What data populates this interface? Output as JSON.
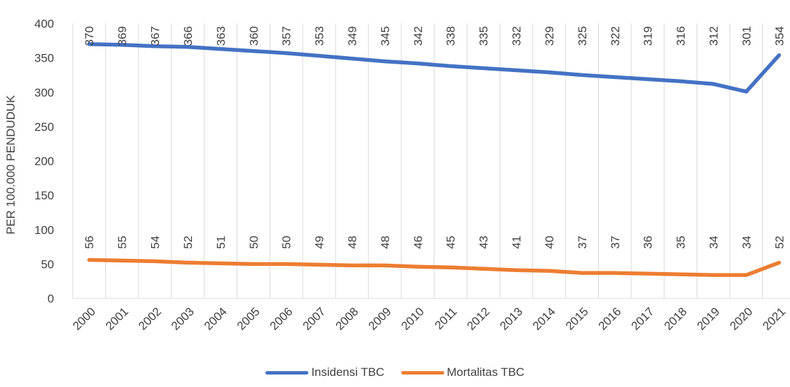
{
  "chart_data": {
    "type": "line",
    "title": "",
    "xlabel": "",
    "ylabel": "PER 100.000 PENDUDUK",
    "ylim": [
      0,
      400
    ],
    "yticks": [
      "0",
      "50",
      "100",
      "150",
      "200",
      "250",
      "300",
      "350",
      "400"
    ],
    "grid": "vertical",
    "legend_position": "bottom",
    "categories": [
      "2000",
      "2001",
      "2002",
      "2003",
      "2004",
      "2005",
      "2006",
      "2007",
      "2008",
      "2009",
      "2010",
      "2011",
      "2012",
      "2013",
      "2014",
      "2015",
      "2016",
      "2017",
      "2018",
      "2019",
      "2020",
      "2021"
    ],
    "series": [
      {
        "name": "Insidensi TBC",
        "color": "#4472C4",
        "values": [
          370,
          369,
          367,
          366,
          363,
          360,
          357,
          353,
          349,
          345,
          342,
          338,
          335,
          332,
          329,
          325,
          322,
          319,
          316,
          312,
          301,
          354
        ]
      },
      {
        "name": "Mortalitas TBC",
        "color": "#ED7D31",
        "values": [
          56,
          55,
          54,
          52,
          51,
          50,
          50,
          49,
          48,
          48,
          46,
          45,
          43,
          41,
          40,
          37,
          37,
          36,
          35,
          34,
          34,
          52
        ]
      }
    ]
  }
}
